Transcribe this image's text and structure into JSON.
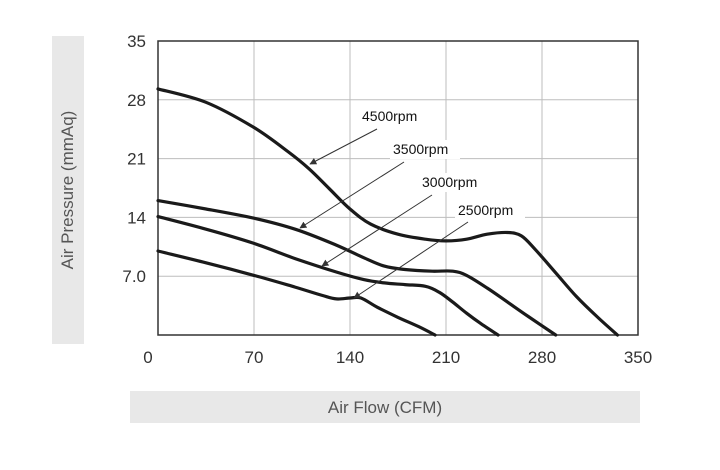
{
  "chart_data": {
    "type": "line",
    "xlabel": "Air Flow (CFM)",
    "ylabel": "Air Pressure (mmAq)",
    "xlim": [
      0,
      350
    ],
    "ylim": [
      0,
      35
    ],
    "x_ticks": [
      "0",
      "70",
      "140",
      "210",
      "280",
      "350"
    ],
    "y_ticks": [
      "35",
      "28",
      "21",
      "14",
      "7.0"
    ],
    "y_tick_values": [
      35,
      28,
      21,
      14,
      7
    ],
    "grid": true,
    "series": [
      {
        "name": "4500rpm",
        "x": [
          0,
          35,
          70,
          95,
          110,
          125,
          140,
          155,
          175,
          195,
          210,
          225,
          240,
          255,
          265,
          275,
          290,
          305,
          320,
          335
        ],
        "y": [
          29.3,
          27.7,
          24.7,
          21.8,
          19.8,
          17.4,
          15.0,
          13.2,
          12.0,
          11.4,
          11.2,
          11.4,
          12.0,
          12.2,
          11.8,
          10.2,
          7.4,
          4.6,
          2.2,
          0
        ]
      },
      {
        "name": "3500rpm",
        "x": [
          0,
          35,
          70,
          100,
          130,
          150,
          165,
          180,
          200,
          215,
          225,
          240,
          255,
          270,
          290
        ],
        "y": [
          16.0,
          15.0,
          13.9,
          12.6,
          10.7,
          9.2,
          8.2,
          7.8,
          7.6,
          7.6,
          7.1,
          5.6,
          3.9,
          2.2,
          0
        ]
      },
      {
        "name": "3000rpm",
        "x": [
          0,
          35,
          70,
          100,
          130,
          150,
          165,
          180,
          195,
          205,
          215,
          225,
          235,
          248
        ],
        "y": [
          14.1,
          12.6,
          10.9,
          9.1,
          7.5,
          6.6,
          6.2,
          6.0,
          5.8,
          5.1,
          3.9,
          2.6,
          1.4,
          0
        ]
      },
      {
        "name": "2500rpm",
        "x": [
          0,
          35,
          70,
          100,
          120,
          130,
          140,
          148,
          160,
          175,
          190,
          202
        ],
        "y": [
          10.0,
          8.6,
          7.1,
          5.7,
          4.7,
          4.3,
          4.4,
          4.4,
          3.3,
          2.1,
          1.0,
          0
        ]
      }
    ],
    "annotations": [
      {
        "text": "4500rpm",
        "series": 0
      },
      {
        "text": "3500rpm",
        "series": 1
      },
      {
        "text": "3000rpm",
        "series": 2
      },
      {
        "text": "2500rpm",
        "series": 3
      }
    ]
  }
}
